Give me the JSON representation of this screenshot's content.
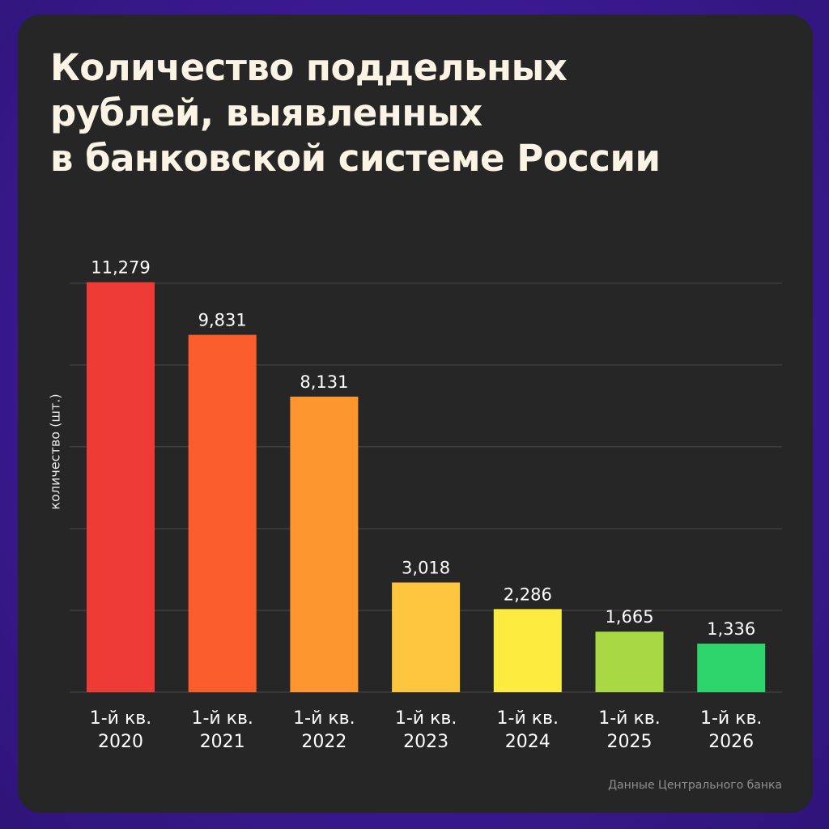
{
  "title_lines": [
    "Количество поддельных",
    "рублей, выявленных",
    "в банковской системе России"
  ],
  "source": "Данные Центрального банка",
  "colors": {
    "background": "#3b1a93",
    "card": "#262626",
    "title": "#fbf3e4",
    "bars": [
      "#ef3b36",
      "#fb5e2c",
      "#fe962f",
      "#fec53e",
      "#fcec3f",
      "#a8d843",
      "#2dd46c"
    ]
  },
  "chart_data": {
    "type": "bar",
    "title": "Количество поддельных рублей, выявленных в банковской системе России",
    "ylabel": "количество (шт.)",
    "xlabel": "",
    "categories": [
      [
        "1-й кв.",
        "2020"
      ],
      [
        "1-й кв.",
        "2021"
      ],
      [
        "1-й кв.",
        "2022"
      ],
      [
        "1-й кв.",
        "2023"
      ],
      [
        "1-й кв.",
        "2024"
      ],
      [
        "1-й кв.",
        "2025"
      ],
      [
        "1-й кв.",
        "2026"
      ]
    ],
    "values": [
      11279,
      9831,
      8131,
      3018,
      2286,
      1665,
      1336
    ],
    "value_labels": [
      "11,279",
      "9,831",
      "8,131",
      "3,018",
      "2,286",
      "1,665",
      "1,336"
    ],
    "ylim": [
      0,
      14000
    ],
    "grid": true
  }
}
